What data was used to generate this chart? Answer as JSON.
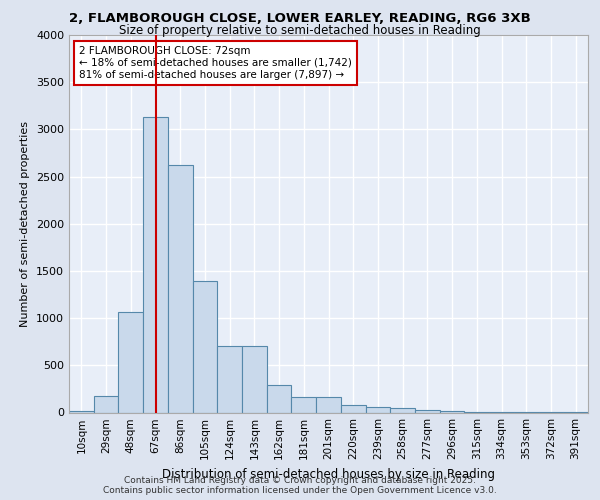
{
  "title_line1": "2, FLAMBOROUGH CLOSE, LOWER EARLEY, READING, RG6 3XB",
  "title_line2": "Size of property relative to semi-detached houses in Reading",
  "xlabel": "Distribution of semi-detached houses by size in Reading",
  "ylabel": "Number of semi-detached properties",
  "footer_line1": "Contains HM Land Registry data © Crown copyright and database right 2025.",
  "footer_line2": "Contains public sector information licensed under the Open Government Licence v3.0.",
  "categories": [
    "10sqm",
    "29sqm",
    "48sqm",
    "67sqm",
    "86sqm",
    "105sqm",
    "124sqm",
    "143sqm",
    "162sqm",
    "181sqm",
    "201sqm",
    "220sqm",
    "239sqm",
    "258sqm",
    "277sqm",
    "296sqm",
    "315sqm",
    "334sqm",
    "353sqm",
    "372sqm",
    "391sqm"
  ],
  "values": [
    15,
    170,
    1060,
    3130,
    2620,
    1390,
    700,
    700,
    290,
    160,
    160,
    75,
    55,
    45,
    30,
    20,
    10,
    5,
    3,
    2,
    2
  ],
  "bar_color": "#c9d9eb",
  "bar_edge_color": "#5588aa",
  "red_line_x": 3.0,
  "annotation_text": "2 FLAMBOROUGH CLOSE: 72sqm\n← 18% of semi-detached houses are smaller (1,742)\n81% of semi-detached houses are larger (7,897) →",
  "annotation_box_color": "#ffffff",
  "annotation_box_edge": "#cc0000",
  "red_line_color": "#cc0000",
  "ylim": [
    0,
    4000
  ],
  "yticks": [
    0,
    500,
    1000,
    1500,
    2000,
    2500,
    3000,
    3500,
    4000
  ],
  "bg_color": "#dde4f0",
  "plot_bg_color": "#e8eef8",
  "grid_color": "#ffffff",
  "title_fontsize": 9.5,
  "subtitle_fontsize": 8.5,
  "footer_fontsize": 6.5
}
